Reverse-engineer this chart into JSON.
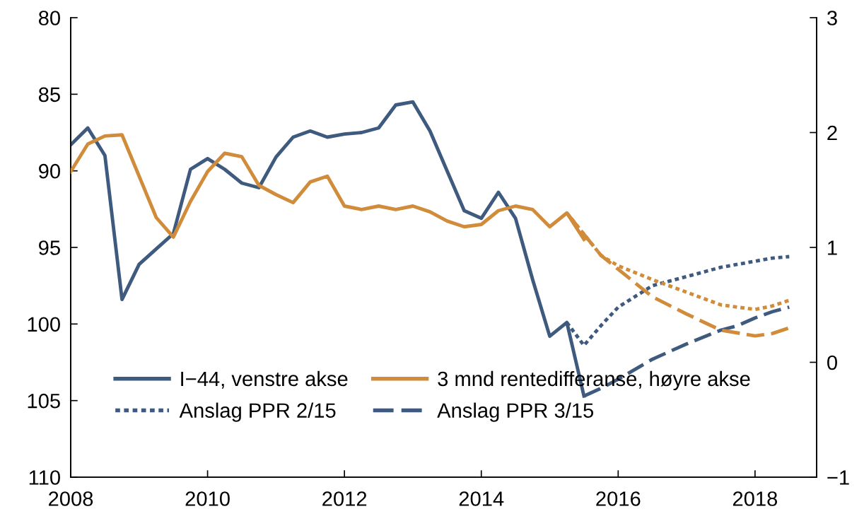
{
  "chart_data": {
    "type": "line",
    "xlim": [
      2008,
      2018.9
    ],
    "xticks": [
      2008,
      2010,
      2012,
      2014,
      2016,
      2018
    ],
    "ylim": [
      110,
      80
    ],
    "yticks": [
      80,
      85,
      90,
      95,
      100,
      105,
      110
    ],
    "y2lim": [
      -1,
      3
    ],
    "y2ticks": [
      {
        "value": -1,
        "label": "−1"
      },
      0,
      1,
      2,
      3
    ],
    "grid": false,
    "legend": "bottom left",
    "marker": "none",
    "series": [
      {
        "name": "I−44, venstre akse",
        "color": "#3e5a7e",
        "line_style": "solid",
        "x": [
          2008.0,
          2008.25,
          2008.5,
          2008.75,
          2009.0,
          2009.25,
          2009.5,
          2009.75,
          2010.0,
          2010.25,
          2010.5,
          2010.75,
          2011.0,
          2011.25,
          2011.5,
          2011.75,
          2012.0,
          2012.25,
          2012.5,
          2012.75,
          2013.0,
          2013.25,
          2013.5,
          2013.75,
          2014.0,
          2014.25,
          2014.5,
          2014.75,
          2015.0,
          2015.25,
          2015.5
        ],
        "values": [
          88.3,
          87.2,
          89.0,
          98.4,
          96.1,
          95.1,
          94.1,
          89.9,
          89.2,
          89.9,
          90.8,
          91.1,
          89.1,
          87.8,
          87.4,
          87.8,
          87.6,
          87.5,
          87.2,
          85.7,
          85.5,
          87.4,
          90.0,
          92.6,
          93.1,
          91.4,
          93.1,
          97.1,
          100.8,
          99.9,
          104.7
        ]
      },
      {
        "name": "3 mnd rentedifferanse, høyre akse",
        "color": "#d08c3a",
        "line_style": "solid",
        "axis": "y2",
        "x": [
          2008.0,
          2008.25,
          2008.5,
          2008.75,
          2009.0,
          2009.25,
          2009.5,
          2009.75,
          2010.0,
          2010.25,
          2010.5,
          2010.75,
          2011.0,
          2011.25,
          2011.5,
          2011.75,
          2012.0,
          2012.25,
          2012.5,
          2012.75,
          2013.0,
          2013.25,
          2013.5,
          2013.75,
          2014.0,
          2014.25,
          2014.5,
          2014.75,
          2015.0,
          2015.25,
          2015.5
        ],
        "values": [
          1.66,
          1.9,
          1.97,
          1.98,
          1.62,
          1.26,
          1.09,
          1.4,
          1.66,
          1.82,
          1.79,
          1.54,
          1.46,
          1.39,
          1.57,
          1.62,
          1.36,
          1.33,
          1.36,
          1.33,
          1.36,
          1.31,
          1.23,
          1.18,
          1.2,
          1.32,
          1.36,
          1.33,
          1.18,
          1.3,
          1.07
        ]
      },
      {
        "name": "Anslag PPR 2/15",
        "color": "#3e5a7e",
        "line_style": "dotted",
        "x": [
          2015.25,
          2015.5,
          2015.75,
          2016.0,
          2016.5,
          2017.0,
          2017.5,
          2018.0,
          2018.25,
          2018.5
        ],
        "values": [
          99.9,
          101.4,
          100.1,
          98.9,
          97.5,
          96.9,
          96.3,
          95.9,
          95.7,
          95.6
        ]
      },
      {
        "color": "#d08c3a",
        "line_style": "dotted",
        "axis": "y2",
        "x": [
          2015.25,
          2015.75,
          2016.0,
          2016.5,
          2017.0,
          2017.5,
          2018.0,
          2018.25,
          2018.5
        ],
        "values": [
          1.3,
          0.93,
          0.84,
          0.72,
          0.61,
          0.5,
          0.46,
          0.49,
          0.54
        ]
      },
      {
        "name": "Anslag PPR 3/15",
        "color": "#3e5a7e",
        "line_style": "dashed",
        "x": [
          2015.5,
          2015.75,
          2016.0,
          2016.5,
          2017.0,
          2017.5,
          2017.75,
          2018.0,
          2018.25,
          2018.5
        ],
        "values": [
          104.7,
          104.2,
          103.6,
          102.3,
          101.3,
          100.4,
          100.1,
          99.6,
          99.2,
          98.9
        ]
      },
      {
        "color": "#d08c3a",
        "line_style": "dashed",
        "axis": "y2",
        "x": [
          2015.25,
          2015.75,
          2016.0,
          2016.5,
          2017.0,
          2017.5,
          2018.0,
          2018.25,
          2018.5
        ],
        "values": [
          1.3,
          0.93,
          0.81,
          0.57,
          0.42,
          0.28,
          0.23,
          0.25,
          0.3
        ]
      }
    ]
  }
}
